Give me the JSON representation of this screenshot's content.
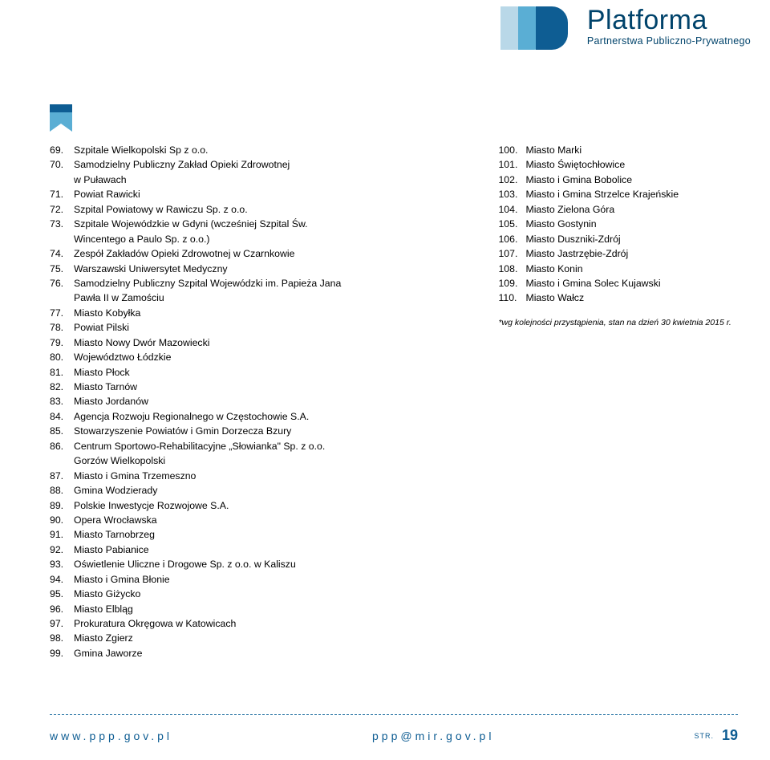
{
  "logo": {
    "title": "Platforma",
    "subtitle": "Partnerstwa Publiczno-Prywatnego",
    "colors": {
      "light": "#b9d8e8",
      "mid": "#5aaed4",
      "dark": "#0e5d93"
    }
  },
  "left_list": [
    [
      "69.",
      "Szpitale Wielkopolski Sp z o.o."
    ],
    [
      "70.",
      "Samodzielny Publiczny Zakład Opieki Zdrowotnej"
    ],
    [
      "",
      "w Puławach"
    ],
    [
      "71.",
      "Powiat Rawicki"
    ],
    [
      "72.",
      "Szpital Powiatowy w Rawiczu Sp. z o.o."
    ],
    [
      "73.",
      "Szpitale Wojewódzkie w Gdyni (wcześniej Szpital Św."
    ],
    [
      "",
      "Wincentego a Paulo Sp. z o.o.)"
    ],
    [
      "74.",
      "Zespół Zakładów Opieki Zdrowotnej w Czarnkowie"
    ],
    [
      "75.",
      "Warszawski Uniwersytet Medyczny"
    ],
    [
      "76.",
      "Samodzielny Publiczny Szpital Wojewódzki im. Papieża Jana"
    ],
    [
      "",
      "Pawła II w Zamościu"
    ],
    [
      "77.",
      "Miasto Kobyłka"
    ],
    [
      "78.",
      "Powiat Pilski"
    ],
    [
      "79.",
      "Miasto Nowy Dwór Mazowiecki"
    ],
    [
      "80.",
      "Województwo Łódzkie"
    ],
    [
      "81.",
      "Miasto Płock"
    ],
    [
      "82.",
      "Miasto Tarnów"
    ],
    [
      "83.",
      "Miasto Jordanów"
    ],
    [
      "84.",
      "Agencja Rozwoju Regionalnego w Częstochowie S.A."
    ],
    [
      "85.",
      "Stowarzyszenie Powiatów i Gmin Dorzecza Bzury"
    ],
    [
      "86.",
      "Centrum Sportowo-Rehabilitacyjne „Słowianka\" Sp. z o.o."
    ],
    [
      "",
      "Gorzów Wielkopolski"
    ],
    [
      "87.",
      "Miasto i Gmina Trzemeszno"
    ],
    [
      "88.",
      "Gmina Wodzierady"
    ],
    [
      "89.",
      "Polskie Inwestycje Rozwojowe S.A."
    ],
    [
      "90.",
      "Opera Wrocławska"
    ],
    [
      "91.",
      "Miasto Tarnobrzeg"
    ],
    [
      "92.",
      "Miasto Pabianice"
    ],
    [
      "93.",
      "Oświetlenie Uliczne i Drogowe Sp. z o.o. w Kaliszu"
    ],
    [
      "94.",
      "Miasto i Gmina Błonie"
    ],
    [
      "95.",
      "Miasto Giżycko"
    ],
    [
      "96.",
      "Miasto Elbląg"
    ],
    [
      "97.",
      "Prokuratura Okręgowa w Katowicach"
    ],
    [
      "98.",
      "Miasto Zgierz"
    ],
    [
      "99.",
      "Gmina Jaworze"
    ]
  ],
  "right_list": [
    [
      "100.",
      "Miasto Marki"
    ],
    [
      "101.",
      "Miasto Świętochłowice"
    ],
    [
      "102.",
      "Miasto i Gmina Bobolice"
    ],
    [
      "103.",
      "Miasto i Gmina Strzelce Krajeńskie"
    ],
    [
      "104.",
      "Miasto Zielona Góra"
    ],
    [
      "105.",
      "Miasto Gostynin"
    ],
    [
      "106.",
      "Miasto Duszniki-Zdrój"
    ],
    [
      "107.",
      "Miasto Jastrzębie-Zdrój"
    ],
    [
      "108.",
      "Miasto Konin"
    ],
    [
      "109.",
      "Miasto i Gmina Solec Kujawski"
    ],
    [
      "110.",
      "Miasto Wałcz"
    ]
  ],
  "footnote": "*wg kolejności przystąpienia, stan na dzień 30 kwietnia 2015 r.",
  "footer": {
    "left": "www.ppp.gov.pl",
    "center": "ppp@mir.gov.pl",
    "str_label": "STR.",
    "page": "19"
  },
  "colors": {
    "text": "#000000",
    "accent": "#0e5d93",
    "divider": "#1f6fa0",
    "background": "#ffffff"
  }
}
